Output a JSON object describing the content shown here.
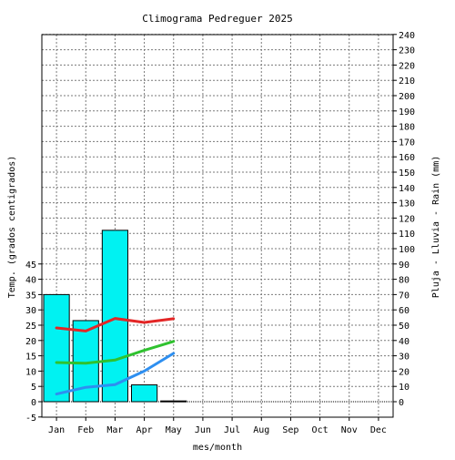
{
  "chart_data": {
    "type": "bar",
    "title": "Climograma Pedreguer 2025",
    "xlabel": "mes/month",
    "ylabel": "Temp. (grados centigrados)",
    "y2label": "Pluja - Lluvia - Rain (mm)",
    "categories": [
      "Jan",
      "Feb",
      "Mar",
      "Apr",
      "May",
      "Jun",
      "Jul",
      "Aug",
      "Sep",
      "Oct",
      "Nov",
      "Dec"
    ],
    "ylim": [
      -5,
      45
    ],
    "yticks": [
      "-5",
      "0",
      "5",
      "10",
      "15",
      "20",
      "25",
      "30",
      "35",
      "40",
      "45"
    ],
    "y2lim": [
      0,
      240
    ],
    "y2ticks": [
      "0",
      "10",
      "20",
      "30",
      "40",
      "50",
      "60",
      "70",
      "80",
      "90",
      "100",
      "110",
      "120",
      "130",
      "140",
      "150",
      "160",
      "170",
      "180",
      "190",
      "200",
      "210",
      "220",
      "230",
      "240"
    ],
    "grid": true,
    "rain": {
      "axis": "right",
      "color": "#00f2f2",
      "values": [
        70,
        53,
        112,
        11,
        0.5,
        null,
        null,
        null,
        null,
        null,
        null,
        null
      ]
    },
    "series": [
      {
        "axis": "left",
        "color": "#e32626",
        "values": [
          24.1,
          23.1,
          27.2,
          25.9,
          27.1,
          null,
          null,
          null,
          null,
          null,
          null,
          null
        ]
      },
      {
        "axis": "left",
        "color": "#2fc22f",
        "values": [
          12.8,
          12.6,
          13.6,
          16.8,
          19.7,
          null,
          null,
          null,
          null,
          null,
          null,
          null
        ]
      },
      {
        "axis": "left",
        "color": "#2e8ff0",
        "values": [
          2.5,
          4.7,
          5.6,
          10.0,
          15.8,
          null,
          null,
          null,
          null,
          null,
          null,
          null
        ]
      }
    ]
  }
}
